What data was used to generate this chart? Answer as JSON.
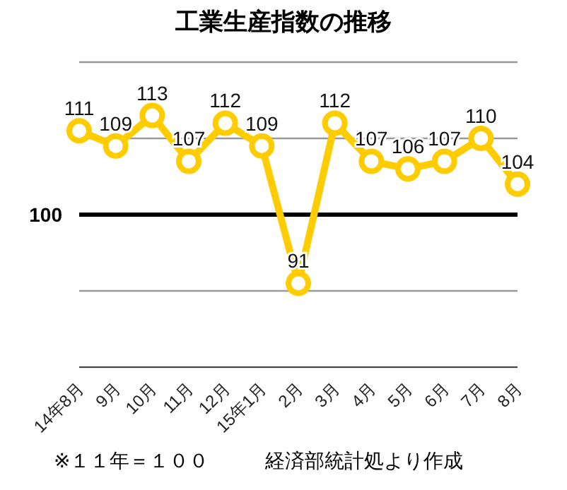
{
  "chart_data": {
    "type": "line",
    "title": "工業生産指数の推移",
    "categories": [
      "14年8月",
      "9月",
      "10月",
      "11月",
      "12月",
      "15年1月",
      "2月",
      "3月",
      "4月",
      "5月",
      "6月",
      "7月",
      "8月"
    ],
    "series": [
      {
        "color": "#ffcc00",
        "values": [
          111,
          109,
          113,
          107,
          112,
          109,
          91,
          112,
          107,
          106,
          107,
          110,
          104
        ]
      }
    ],
    "ylim": [
      80,
      120
    ],
    "yticks": [
      {
        "value": 80,
        "label": null
      },
      {
        "value": 90,
        "label": null
      },
      {
        "value": 100,
        "label": null
      },
      {
        "value": 110,
        "label": null
      },
      {
        "value": 120,
        "label": null
      }
    ],
    "ref_lines": [
      {
        "axis": "y",
        "value": 100,
        "label": "100",
        "color": "#000000"
      }
    ],
    "grid": "y",
    "marker": "circle",
    "line_style": "solid",
    "data_labels": true,
    "annotations": [
      "※１１年＝１００",
      "経済部統計処より作成"
    ]
  }
}
